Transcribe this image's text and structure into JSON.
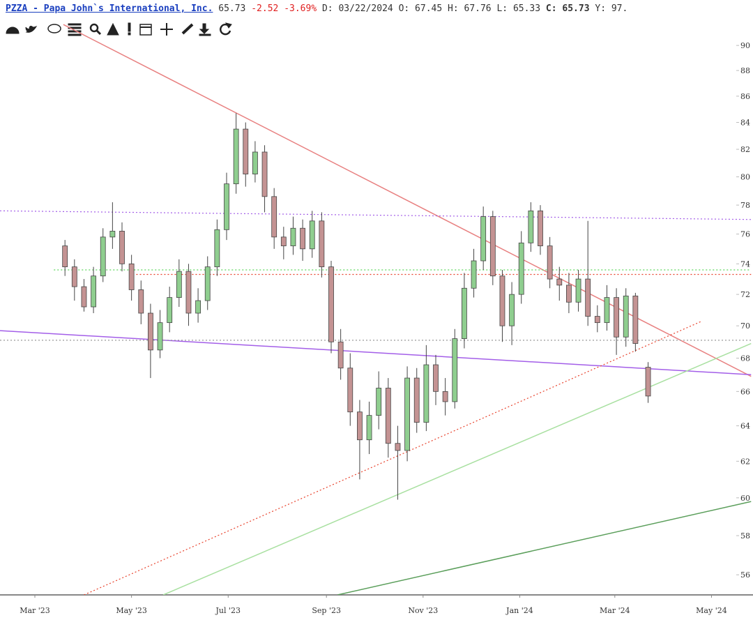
{
  "header": {
    "title": "PZZA - Papa John`s International, Inc.",
    "last": "65.73",
    "change": "-2.52",
    "change_pct": "-3.69%",
    "date": "D: 03/22/2024",
    "open": "O: 67.45",
    "high": "H: 67.76",
    "low": "L: 65.33",
    "close_label": "C:",
    "close": "65.73",
    "year": "Y: 97."
  },
  "chart_data": {
    "type": "candlestick",
    "log": true,
    "xlim": [
      "2023-02-07",
      "2024-05-14"
    ],
    "ylim": [
      55,
      92
    ],
    "yticks": [
      56,
      58,
      60,
      62,
      64,
      66,
      68,
      70,
      72,
      74,
      76,
      78,
      80,
      82,
      84,
      86,
      88,
      90
    ],
    "xticks": [
      {
        "value": "2023-03-01",
        "label": "Mar '23"
      },
      {
        "value": "2023-05-01",
        "label": "May '23"
      },
      {
        "value": "2023-07-01",
        "label": "Jul '23"
      },
      {
        "value": "2023-09-01",
        "label": "Sep '23"
      },
      {
        "value": "2023-11-01",
        "label": "Nov '23"
      },
      {
        "value": "2024-01-01",
        "label": "Jan '24"
      },
      {
        "value": "2024-03-01",
        "label": "Mar '24"
      },
      {
        "value": "2024-05-01",
        "label": "May '24"
      }
    ],
    "up_color": "#8fce8f",
    "down_color": "#c49393",
    "x": [
      "2023-03-20",
      "2023-03-26",
      "2023-04-01",
      "2023-04-07",
      "2023-04-13",
      "2023-04-19",
      "2023-04-25",
      "2023-05-01",
      "2023-05-07",
      "2023-05-13",
      "2023-05-19",
      "2023-05-25",
      "2023-05-31",
      "2023-06-06",
      "2023-06-12",
      "2023-06-18",
      "2023-06-24",
      "2023-06-30",
      "2023-07-06",
      "2023-07-12",
      "2023-07-18",
      "2023-07-24",
      "2023-07-30",
      "2023-08-05",
      "2023-08-11",
      "2023-08-17",
      "2023-08-23",
      "2023-08-29",
      "2023-09-04",
      "2023-09-10",
      "2023-09-16",
      "2023-09-22",
      "2023-09-28",
      "2023-10-04",
      "2023-10-10",
      "2023-10-16",
      "2023-10-22",
      "2023-10-28",
      "2023-11-03",
      "2023-11-09",
      "2023-11-15",
      "2023-11-21",
      "2023-11-27",
      "2023-12-03",
      "2023-12-09",
      "2023-12-15",
      "2023-12-21",
      "2023-12-27",
      "2024-01-02",
      "2024-01-08",
      "2024-01-14",
      "2024-01-20",
      "2024-01-26",
      "2024-02-01",
      "2024-02-07",
      "2024-02-13",
      "2024-02-19",
      "2024-02-25",
      "2024-03-02",
      "2024-03-08",
      "2024-03-14",
      "2024-03-22"
    ],
    "open": [
      75.2,
      73.8,
      72.5,
      71.2,
      73.2,
      75.8,
      76.2,
      74.0,
      72.3,
      70.8,
      68.5,
      70.2,
      71.8,
      73.5,
      70.8,
      71.6,
      73.8,
      76.3,
      79.5,
      83.5,
      80.2,
      81.8,
      78.6,
      75.8,
      75.2,
      76.4,
      75.0,
      76.9,
      73.8,
      69.0,
      67.4,
      64.8,
      63.2,
      64.6,
      66.2,
      63.0,
      62.6,
      66.8,
      64.2,
      67.6,
      66.0,
      65.4,
      69.2,
      72.4,
      74.2,
      77.2,
      73.2,
      70.0,
      72.0,
      75.4,
      77.6,
      75.2,
      73.0,
      72.6,
      71.5,
      73.0,
      70.6,
      70.2,
      71.8,
      69.3,
      71.9,
      67.45
    ],
    "high": [
      75.6,
      74.3,
      73.0,
      73.8,
      76.4,
      78.2,
      76.8,
      74.6,
      72.9,
      71.4,
      71.0,
      72.5,
      74.3,
      74.0,
      72.4,
      74.5,
      77.0,
      80.3,
      84.7,
      84.0,
      82.6,
      82.3,
      79.2,
      76.5,
      77.2,
      77.0,
      77.6,
      77.5,
      74.2,
      69.8,
      68.3,
      65.5,
      65.4,
      67.2,
      66.8,
      64.0,
      67.5,
      67.4,
      68.8,
      68.2,
      66.8,
      69.8,
      73.4,
      75.0,
      77.9,
      77.6,
      73.6,
      72.8,
      76.2,
      78.2,
      78.0,
      75.8,
      73.8,
      73.4,
      73.6,
      76.9,
      71.3,
      72.6,
      72.4,
      72.4,
      72.1,
      67.76
    ],
    "low": [
      73.2,
      71.6,
      70.9,
      70.8,
      72.8,
      75.0,
      73.5,
      71.6,
      70.1,
      66.8,
      68.0,
      69.6,
      71.2,
      70.0,
      70.2,
      71.0,
      73.2,
      75.6,
      78.8,
      79.3,
      79.6,
      77.5,
      75.0,
      74.3,
      74.6,
      74.2,
      74.4,
      73.1,
      68.3,
      66.7,
      64.0,
      61.0,
      62.4,
      63.8,
      62.2,
      59.9,
      62.0,
      63.6,
      63.7,
      65.2,
      64.6,
      65.0,
      68.6,
      71.8,
      73.6,
      72.6,
      69.0,
      68.8,
      71.4,
      74.8,
      74.6,
      72.4,
      71.6,
      70.8,
      70.9,
      70.0,
      69.6,
      69.7,
      68.2,
      68.7,
      68.4,
      65.33
    ],
    "close": [
      73.8,
      72.5,
      71.2,
      73.2,
      75.8,
      76.2,
      74.0,
      72.3,
      70.8,
      68.5,
      70.2,
      71.8,
      73.5,
      70.8,
      71.6,
      73.8,
      76.3,
      79.5,
      83.5,
      80.2,
      81.8,
      78.6,
      75.8,
      75.2,
      76.4,
      75.0,
      76.9,
      73.8,
      69.0,
      67.4,
      64.8,
      63.2,
      64.6,
      66.2,
      63.0,
      62.6,
      66.8,
      64.2,
      67.6,
      66.0,
      65.4,
      69.2,
      72.4,
      74.2,
      77.2,
      73.2,
      70.0,
      72.0,
      75.4,
      77.6,
      75.2,
      73.0,
      72.6,
      71.5,
      73.0,
      70.6,
      70.2,
      71.8,
      69.3,
      71.9,
      68.9,
      65.73
    ],
    "lines": [
      {
        "color": "#e88080",
        "dash": false,
        "width": 1.5,
        "points": [
          [
            "2023-03-19",
            91.7
          ],
          [
            "2024-05-26",
            66.9
          ]
        ]
      },
      {
        "color": "#a35ee8",
        "dash": false,
        "width": 1.5,
        "points": [
          [
            "2023-02-07",
            69.7
          ],
          [
            "2024-05-26",
            67.0
          ]
        ]
      },
      {
        "color": "#a35ee8",
        "dash": true,
        "width": 1.2,
        "points": [
          [
            "2023-02-07",
            77.6
          ],
          [
            "2024-05-26",
            77.0
          ]
        ]
      },
      {
        "color": "#5cd65c",
        "dash": true,
        "width": 1.2,
        "points": [
          [
            "2023-03-13",
            73.6
          ],
          [
            "2024-05-26",
            73.6
          ]
        ]
      },
      {
        "color": "#e8402a",
        "dash": true,
        "width": 1.2,
        "points": [
          [
            "2023-05-04",
            73.3
          ],
          [
            "2024-05-26",
            73.3
          ]
        ]
      },
      {
        "color": "#999999",
        "dash": true,
        "width": 1.2,
        "points": [
          [
            "2023-02-07",
            69.1
          ],
          [
            "2024-05-26",
            69.1
          ]
        ]
      },
      {
        "color": "#e8402a",
        "dash": true,
        "width": 1.2,
        "points": [
          [
            "2023-04-01",
            55
          ],
          [
            "2024-04-25",
            70.3
          ]
        ]
      },
      {
        "color": "#a8e0a0",
        "dash": false,
        "width": 1.5,
        "points": [
          [
            "2023-05-21",
            55
          ],
          [
            "2024-05-26",
            68.9
          ]
        ]
      },
      {
        "color": "#5a9e5a",
        "dash": false,
        "width": 1.5,
        "points": [
          [
            "2023-09-08",
            55
          ],
          [
            "2024-05-26",
            59.8
          ]
        ]
      }
    ]
  }
}
